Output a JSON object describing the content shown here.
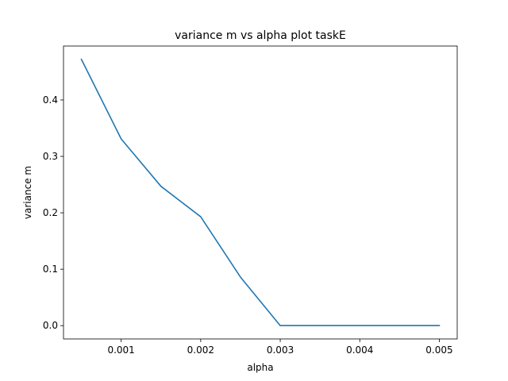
{
  "chart_data": {
    "type": "line",
    "title": "variance m vs alpha plot taskE",
    "xlabel": "alpha",
    "ylabel": "variance m",
    "xlim": [
      0.000275,
      0.005225
    ],
    "ylim": [
      -0.0236,
      0.4956
    ],
    "xticks": [
      0.001,
      0.002,
      0.003,
      0.004,
      0.005
    ],
    "xtick_labels": [
      "0.001",
      "0.002",
      "0.003",
      "0.004",
      "0.005"
    ],
    "yticks": [
      0.0,
      0.1,
      0.2,
      0.3,
      0.4
    ],
    "ytick_labels": [
      "0.0",
      "0.1",
      "0.2",
      "0.3",
      "0.4"
    ],
    "grid": false,
    "series": [
      {
        "color": "#1f77b4",
        "x": [
          0.0005,
          0.001,
          0.0015,
          0.002,
          0.0025,
          0.003,
          0.0035,
          0.004,
          0.0045,
          0.005
        ],
        "y": [
          0.472,
          0.331,
          0.247,
          0.193,
          0.086,
          0.0,
          0.0,
          0.0,
          0.0,
          0.0
        ]
      }
    ]
  }
}
